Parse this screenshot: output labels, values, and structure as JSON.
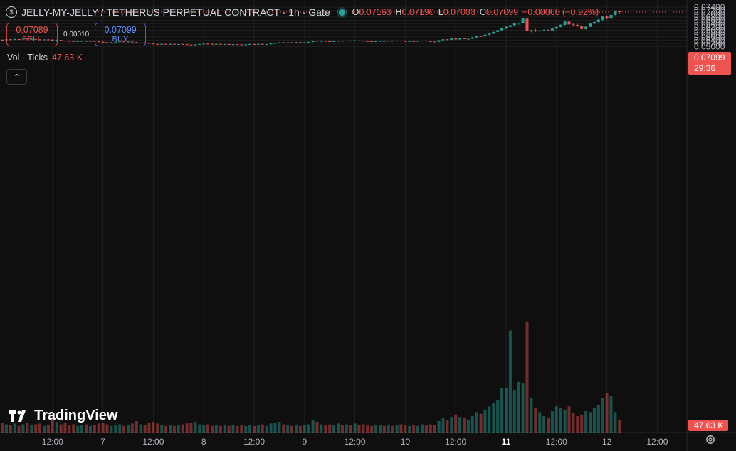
{
  "header": {
    "symbol_icon": "coin-icon",
    "title": "JELLY-MY-JELLY / TETHERUS PERPETUAL CONTRACT · 1h · Gate",
    "o_label": "O",
    "o_value": "0.07163",
    "h_label": "H",
    "h_value": "0.07190",
    "l_label": "L",
    "l_value": "0.07003",
    "c_label": "C",
    "c_value": "0.07099",
    "change": "−0.00066 (−0.92%)"
  },
  "trade": {
    "sell_price": "0.07089",
    "sell_label": "SELL",
    "spread": "0.00010",
    "buy_price": "0.07099",
    "buy_label": "BUY"
  },
  "volume_legend": {
    "label": "Vol · Ticks",
    "value": "47.63 K"
  },
  "collapse_icon": "chevron-up-icon",
  "last_price": {
    "price": "0.07099",
    "countdown": "29:36"
  },
  "volume_tag": "47.63 K",
  "logo_text": "TradingView",
  "colors": {
    "up": "#26a69a",
    "down": "#ef5350",
    "bg": "#0f0f0f",
    "grid": "#1f1f1f",
    "axis_text": "#b2b5be"
  },
  "chart_data": {
    "type": "candlestick",
    "timeframe": "1h",
    "y_ticks": [
      "0.07400",
      "0.07200",
      "0.07000",
      "0.06800",
      "0.06600",
      "0.06400",
      "0.06200",
      "0.06000",
      "0.05800",
      "0.05600",
      "0.05400",
      "0.05200",
      "0.05000"
    ],
    "ylim": [
      0.0486,
      0.0743
    ],
    "x_ticks": [
      {
        "label": "12:00",
        "bar": 12
      },
      {
        "label": "7",
        "bar": 24
      },
      {
        "label": "12:00",
        "bar": 36
      },
      {
        "label": "8",
        "bar": 48
      },
      {
        "label": "12:00",
        "bar": 60
      },
      {
        "label": "9",
        "bar": 72
      },
      {
        "label": "12:00",
        "bar": 84
      },
      {
        "label": "10",
        "bar": 96
      },
      {
        "label": "12:00",
        "bar": 108
      },
      {
        "label": "11",
        "bar": 120,
        "bold": true
      },
      {
        "label": "12:00",
        "bar": 132
      },
      {
        "label": "12",
        "bar": 144
      },
      {
        "label": "12:00",
        "bar": 156
      }
    ],
    "volume_max": 13500,
    "grid": true,
    "candles": [
      [
        0.0542,
        0.0545,
        0.0537,
        0.054,
        1200
      ],
      [
        0.054,
        0.0546,
        0.0538,
        0.0545,
        1000
      ],
      [
        0.0545,
        0.0547,
        0.0542,
        0.0544,
        900
      ],
      [
        0.0544,
        0.0548,
        0.0541,
        0.0546,
        1100
      ],
      [
        0.0546,
        0.0547,
        0.0543,
        0.0545,
        800
      ],
      [
        0.0545,
        0.0549,
        0.0544,
        0.0548,
        1000
      ],
      [
        0.0548,
        0.055,
        0.0544,
        0.0545,
        1200
      ],
      [
        0.0545,
        0.0548,
        0.0543,
        0.0547,
        900
      ],
      [
        0.0547,
        0.0548,
        0.0543,
        0.0544,
        1000
      ],
      [
        0.0544,
        0.0546,
        0.054,
        0.0542,
        1100
      ],
      [
        0.0542,
        0.0545,
        0.054,
        0.0544,
        800
      ],
      [
        0.0544,
        0.0546,
        0.0542,
        0.0543,
        900
      ],
      [
        0.0543,
        0.0545,
        0.0534,
        0.0536,
        1500
      ],
      [
        0.0536,
        0.0543,
        0.0531,
        0.0541,
        1300
      ],
      [
        0.0541,
        0.0542,
        0.0535,
        0.0537,
        1000
      ],
      [
        0.0537,
        0.0539,
        0.0533,
        0.0535,
        1200
      ],
      [
        0.0535,
        0.0537,
        0.0532,
        0.0534,
        900
      ],
      [
        0.0534,
        0.0536,
        0.0531,
        0.0533,
        1000
      ],
      [
        0.0533,
        0.0535,
        0.0531,
        0.0534,
        800
      ],
      [
        0.0534,
        0.0537,
        0.0532,
        0.0535,
        900
      ],
      [
        0.0535,
        0.0536,
        0.0532,
        0.0533,
        1000
      ],
      [
        0.0533,
        0.0536,
        0.0531,
        0.0535,
        800
      ],
      [
        0.0535,
        0.0537,
        0.0531,
        0.0532,
        900
      ],
      [
        0.0532,
        0.0534,
        0.0529,
        0.053,
        1100
      ],
      [
        0.053,
        0.0532,
        0.0526,
        0.0527,
        1200
      ],
      [
        0.0527,
        0.0529,
        0.0525,
        0.0526,
        1000
      ],
      [
        0.0526,
        0.0528,
        0.0525,
        0.0527,
        800
      ],
      [
        0.0527,
        0.0531,
        0.0526,
        0.053,
        900
      ],
      [
        0.053,
        0.0533,
        0.0529,
        0.0532,
        1000
      ],
      [
        0.0532,
        0.0534,
        0.0529,
        0.053,
        800
      ],
      [
        0.053,
        0.0533,
        0.0528,
        0.0531,
        900
      ],
      [
        0.0531,
        0.0532,
        0.0526,
        0.0527,
        1100
      ],
      [
        0.0527,
        0.0529,
        0.052,
        0.0522,
        1400
      ],
      [
        0.0522,
        0.0526,
        0.0521,
        0.0525,
        1000
      ],
      [
        0.0525,
        0.0527,
        0.0521,
        0.0522,
        900
      ],
      [
        0.0522,
        0.0524,
        0.0518,
        0.0519,
        1200
      ],
      [
        0.0519,
        0.0521,
        0.0515,
        0.0516,
        1300
      ],
      [
        0.0516,
        0.0518,
        0.0513,
        0.0514,
        1100
      ],
      [
        0.0514,
        0.0518,
        0.0513,
        0.0517,
        900
      ],
      [
        0.0517,
        0.0518,
        0.0514,
        0.0515,
        800
      ],
      [
        0.0515,
        0.0518,
        0.0514,
        0.0517,
        900
      ],
      [
        0.0517,
        0.0518,
        0.0514,
        0.0515,
        800
      ],
      [
        0.0515,
        0.0517,
        0.0513,
        0.0516,
        900
      ],
      [
        0.0516,
        0.0518,
        0.0514,
        0.0515,
        1000
      ],
      [
        0.0515,
        0.0516,
        0.0511,
        0.0513,
        1100
      ],
      [
        0.0513,
        0.0515,
        0.051,
        0.0511,
        1200
      ],
      [
        0.0511,
        0.0515,
        0.0508,
        0.0514,
        1300
      ],
      [
        0.0514,
        0.0517,
        0.0512,
        0.0516,
        1000
      ],
      [
        0.0516,
        0.0519,
        0.0515,
        0.0518,
        900
      ],
      [
        0.0518,
        0.0521,
        0.0516,
        0.0517,
        1000
      ],
      [
        0.0517,
        0.0519,
        0.0514,
        0.0515,
        800
      ],
      [
        0.0515,
        0.0518,
        0.0514,
        0.0517,
        900
      ],
      [
        0.0517,
        0.0518,
        0.0514,
        0.0515,
        800
      ],
      [
        0.0515,
        0.0517,
        0.0513,
        0.0516,
        900
      ],
      [
        0.0516,
        0.0517,
        0.0513,
        0.0514,
        800
      ],
      [
        0.0514,
        0.0516,
        0.0513,
        0.0515,
        900
      ],
      [
        0.0515,
        0.0516,
        0.0513,
        0.0514,
        800
      ],
      [
        0.0514,
        0.0515,
        0.0512,
        0.0513,
        900
      ],
      [
        0.0513,
        0.0515,
        0.0512,
        0.0514,
        800
      ],
      [
        0.0514,
        0.0517,
        0.0513,
        0.0516,
        900
      ],
      [
        0.0516,
        0.0518,
        0.0514,
        0.0515,
        800
      ],
      [
        0.0515,
        0.0518,
        0.0514,
        0.0517,
        900
      ],
      [
        0.0517,
        0.0518,
        0.0513,
        0.0514,
        1000
      ],
      [
        0.0514,
        0.0516,
        0.0513,
        0.0515,
        800
      ],
      [
        0.0515,
        0.052,
        0.0514,
        0.0519,
        1100
      ],
      [
        0.0519,
        0.0523,
        0.0517,
        0.0522,
        1200
      ],
      [
        0.0522,
        0.0527,
        0.0521,
        0.0526,
        1300
      ],
      [
        0.0526,
        0.0528,
        0.0523,
        0.0524,
        1000
      ],
      [
        0.0524,
        0.0527,
        0.0522,
        0.0526,
        900
      ],
      [
        0.0526,
        0.0528,
        0.0524,
        0.0525,
        800
      ],
      [
        0.0525,
        0.0528,
        0.0524,
        0.0527,
        900
      ],
      [
        0.0527,
        0.0529,
        0.0525,
        0.0526,
        800
      ],
      [
        0.0526,
        0.0528,
        0.0525,
        0.0527,
        900
      ],
      [
        0.0527,
        0.053,
        0.0526,
        0.0529,
        1000
      ],
      [
        0.0529,
        0.0537,
        0.0528,
        0.0536,
        1500
      ],
      [
        0.0536,
        0.0538,
        0.0532,
        0.0533,
        1300
      ],
      [
        0.0533,
        0.0536,
        0.0531,
        0.0535,
        1000
      ],
      [
        0.0535,
        0.0537,
        0.0532,
        0.0533,
        900
      ],
      [
        0.0533,
        0.0535,
        0.053,
        0.0531,
        1000
      ],
      [
        0.0531,
        0.0534,
        0.053,
        0.0533,
        900
      ],
      [
        0.0533,
        0.0537,
        0.0532,
        0.0536,
        1100
      ],
      [
        0.0536,
        0.0538,
        0.0534,
        0.0535,
        900
      ],
      [
        0.0535,
        0.0538,
        0.0534,
        0.0537,
        1000
      ],
      [
        0.0537,
        0.0539,
        0.0535,
        0.0536,
        900
      ],
      [
        0.0536,
        0.054,
        0.0535,
        0.0538,
        1100
      ],
      [
        0.0538,
        0.0539,
        0.0535,
        0.0536,
        900
      ],
      [
        0.0536,
        0.0537,
        0.0533,
        0.0534,
        1000
      ],
      [
        0.0534,
        0.0536,
        0.0532,
        0.0533,
        900
      ],
      [
        0.0533,
        0.0535,
        0.0531,
        0.0532,
        800
      ],
      [
        0.0532,
        0.0534,
        0.0531,
        0.0533,
        900
      ],
      [
        0.0533,
        0.0536,
        0.0532,
        0.0535,
        900
      ],
      [
        0.0535,
        0.0536,
        0.0533,
        0.0534,
        800
      ],
      [
        0.0534,
        0.0537,
        0.0533,
        0.0536,
        900
      ],
      [
        0.0536,
        0.0537,
        0.0534,
        0.0535,
        800
      ],
      [
        0.0535,
        0.0538,
        0.0534,
        0.0537,
        900
      ],
      [
        0.0537,
        0.0538,
        0.0533,
        0.0534,
        1000
      ],
      [
        0.0534,
        0.0535,
        0.0531,
        0.0532,
        900
      ],
      [
        0.0532,
        0.0535,
        0.0531,
        0.0534,
        800
      ],
      [
        0.0534,
        0.0536,
        0.0532,
        0.0533,
        900
      ],
      [
        0.0533,
        0.0536,
        0.0532,
        0.0535,
        800
      ],
      [
        0.0535,
        0.0538,
        0.0534,
        0.0537,
        1000
      ],
      [
        0.0537,
        0.0538,
        0.0533,
        0.0534,
        900
      ],
      [
        0.0534,
        0.0535,
        0.053,
        0.0531,
        1000
      ],
      [
        0.0531,
        0.0532,
        0.0529,
        0.053,
        900
      ],
      [
        0.053,
        0.054,
        0.0529,
        0.0539,
        1400
      ],
      [
        0.0539,
        0.0546,
        0.0538,
        0.0545,
        1800
      ],
      [
        0.0545,
        0.0547,
        0.0541,
        0.0542,
        1500
      ],
      [
        0.0542,
        0.0551,
        0.0541,
        0.055,
        1900
      ],
      [
        0.055,
        0.0554,
        0.0543,
        0.0544,
        2200
      ],
      [
        0.0544,
        0.0552,
        0.0543,
        0.0551,
        1900
      ],
      [
        0.0551,
        0.0553,
        0.0545,
        0.0546,
        1800
      ],
      [
        0.0546,
        0.055,
        0.0544,
        0.0548,
        1500
      ],
      [
        0.0548,
        0.0558,
        0.0547,
        0.0556,
        2000
      ],
      [
        0.0556,
        0.0567,
        0.0554,
        0.0565,
        2500
      ],
      [
        0.0565,
        0.0568,
        0.056,
        0.0563,
        2300
      ],
      [
        0.0563,
        0.0576,
        0.0558,
        0.0573,
        2800
      ],
      [
        0.0573,
        0.0581,
        0.0569,
        0.0579,
        3200
      ],
      [
        0.0579,
        0.0591,
        0.0577,
        0.059,
        3600
      ],
      [
        0.059,
        0.0602,
        0.0588,
        0.06,
        4000
      ],
      [
        0.06,
        0.0614,
        0.0598,
        0.0612,
        5500
      ],
      [
        0.0612,
        0.0623,
        0.0606,
        0.0621,
        5500
      ],
      [
        0.0621,
        0.0632,
        0.0617,
        0.063,
        12500
      ],
      [
        0.063,
        0.0643,
        0.0626,
        0.0641,
        5200
      ],
      [
        0.0641,
        0.0647,
        0.0633,
        0.0645,
        6200
      ],
      [
        0.0645,
        0.0672,
        0.0644,
        0.067,
        6000
      ],
      [
        0.067,
        0.0671,
        0.0579,
        0.0597,
        13600
      ],
      [
        0.0597,
        0.0602,
        0.0587,
        0.06,
        4200
      ],
      [
        0.06,
        0.0608,
        0.059,
        0.0593,
        3000
      ],
      [
        0.0593,
        0.0602,
        0.059,
        0.0598,
        2500
      ],
      [
        0.0598,
        0.0605,
        0.0595,
        0.06,
        2000
      ],
      [
        0.06,
        0.0606,
        0.0597,
        0.0599,
        1800
      ],
      [
        0.0599,
        0.0612,
        0.0598,
        0.061,
        2600
      ],
      [
        0.061,
        0.0622,
        0.0607,
        0.062,
        3200
      ],
      [
        0.062,
        0.0635,
        0.0617,
        0.0633,
        3000
      ],
      [
        0.0633,
        0.0655,
        0.063,
        0.0652,
        2800
      ],
      [
        0.0652,
        0.0655,
        0.063,
        0.0635,
        3200
      ],
      [
        0.0635,
        0.0642,
        0.0628,
        0.0632,
        2400
      ],
      [
        0.0632,
        0.0638,
        0.0622,
        0.0625,
        2000
      ],
      [
        0.0625,
        0.063,
        0.0604,
        0.0607,
        2200
      ],
      [
        0.0607,
        0.0623,
        0.0605,
        0.0621,
        2600
      ],
      [
        0.0621,
        0.0642,
        0.0619,
        0.064,
        2500
      ],
      [
        0.064,
        0.0652,
        0.0637,
        0.065,
        3000
      ],
      [
        0.065,
        0.0668,
        0.0646,
        0.0664,
        3400
      ],
      [
        0.0664,
        0.0685,
        0.0653,
        0.0683,
        4200
      ],
      [
        0.0683,
        0.069,
        0.0666,
        0.067,
        4800
      ],
      [
        0.067,
        0.0695,
        0.0668,
        0.0693,
        4500
      ],
      [
        0.0693,
        0.0719,
        0.0691,
        0.0716,
        2500
      ],
      [
        0.0716,
        0.0719,
        0.07,
        0.071,
        1500
      ]
    ]
  }
}
